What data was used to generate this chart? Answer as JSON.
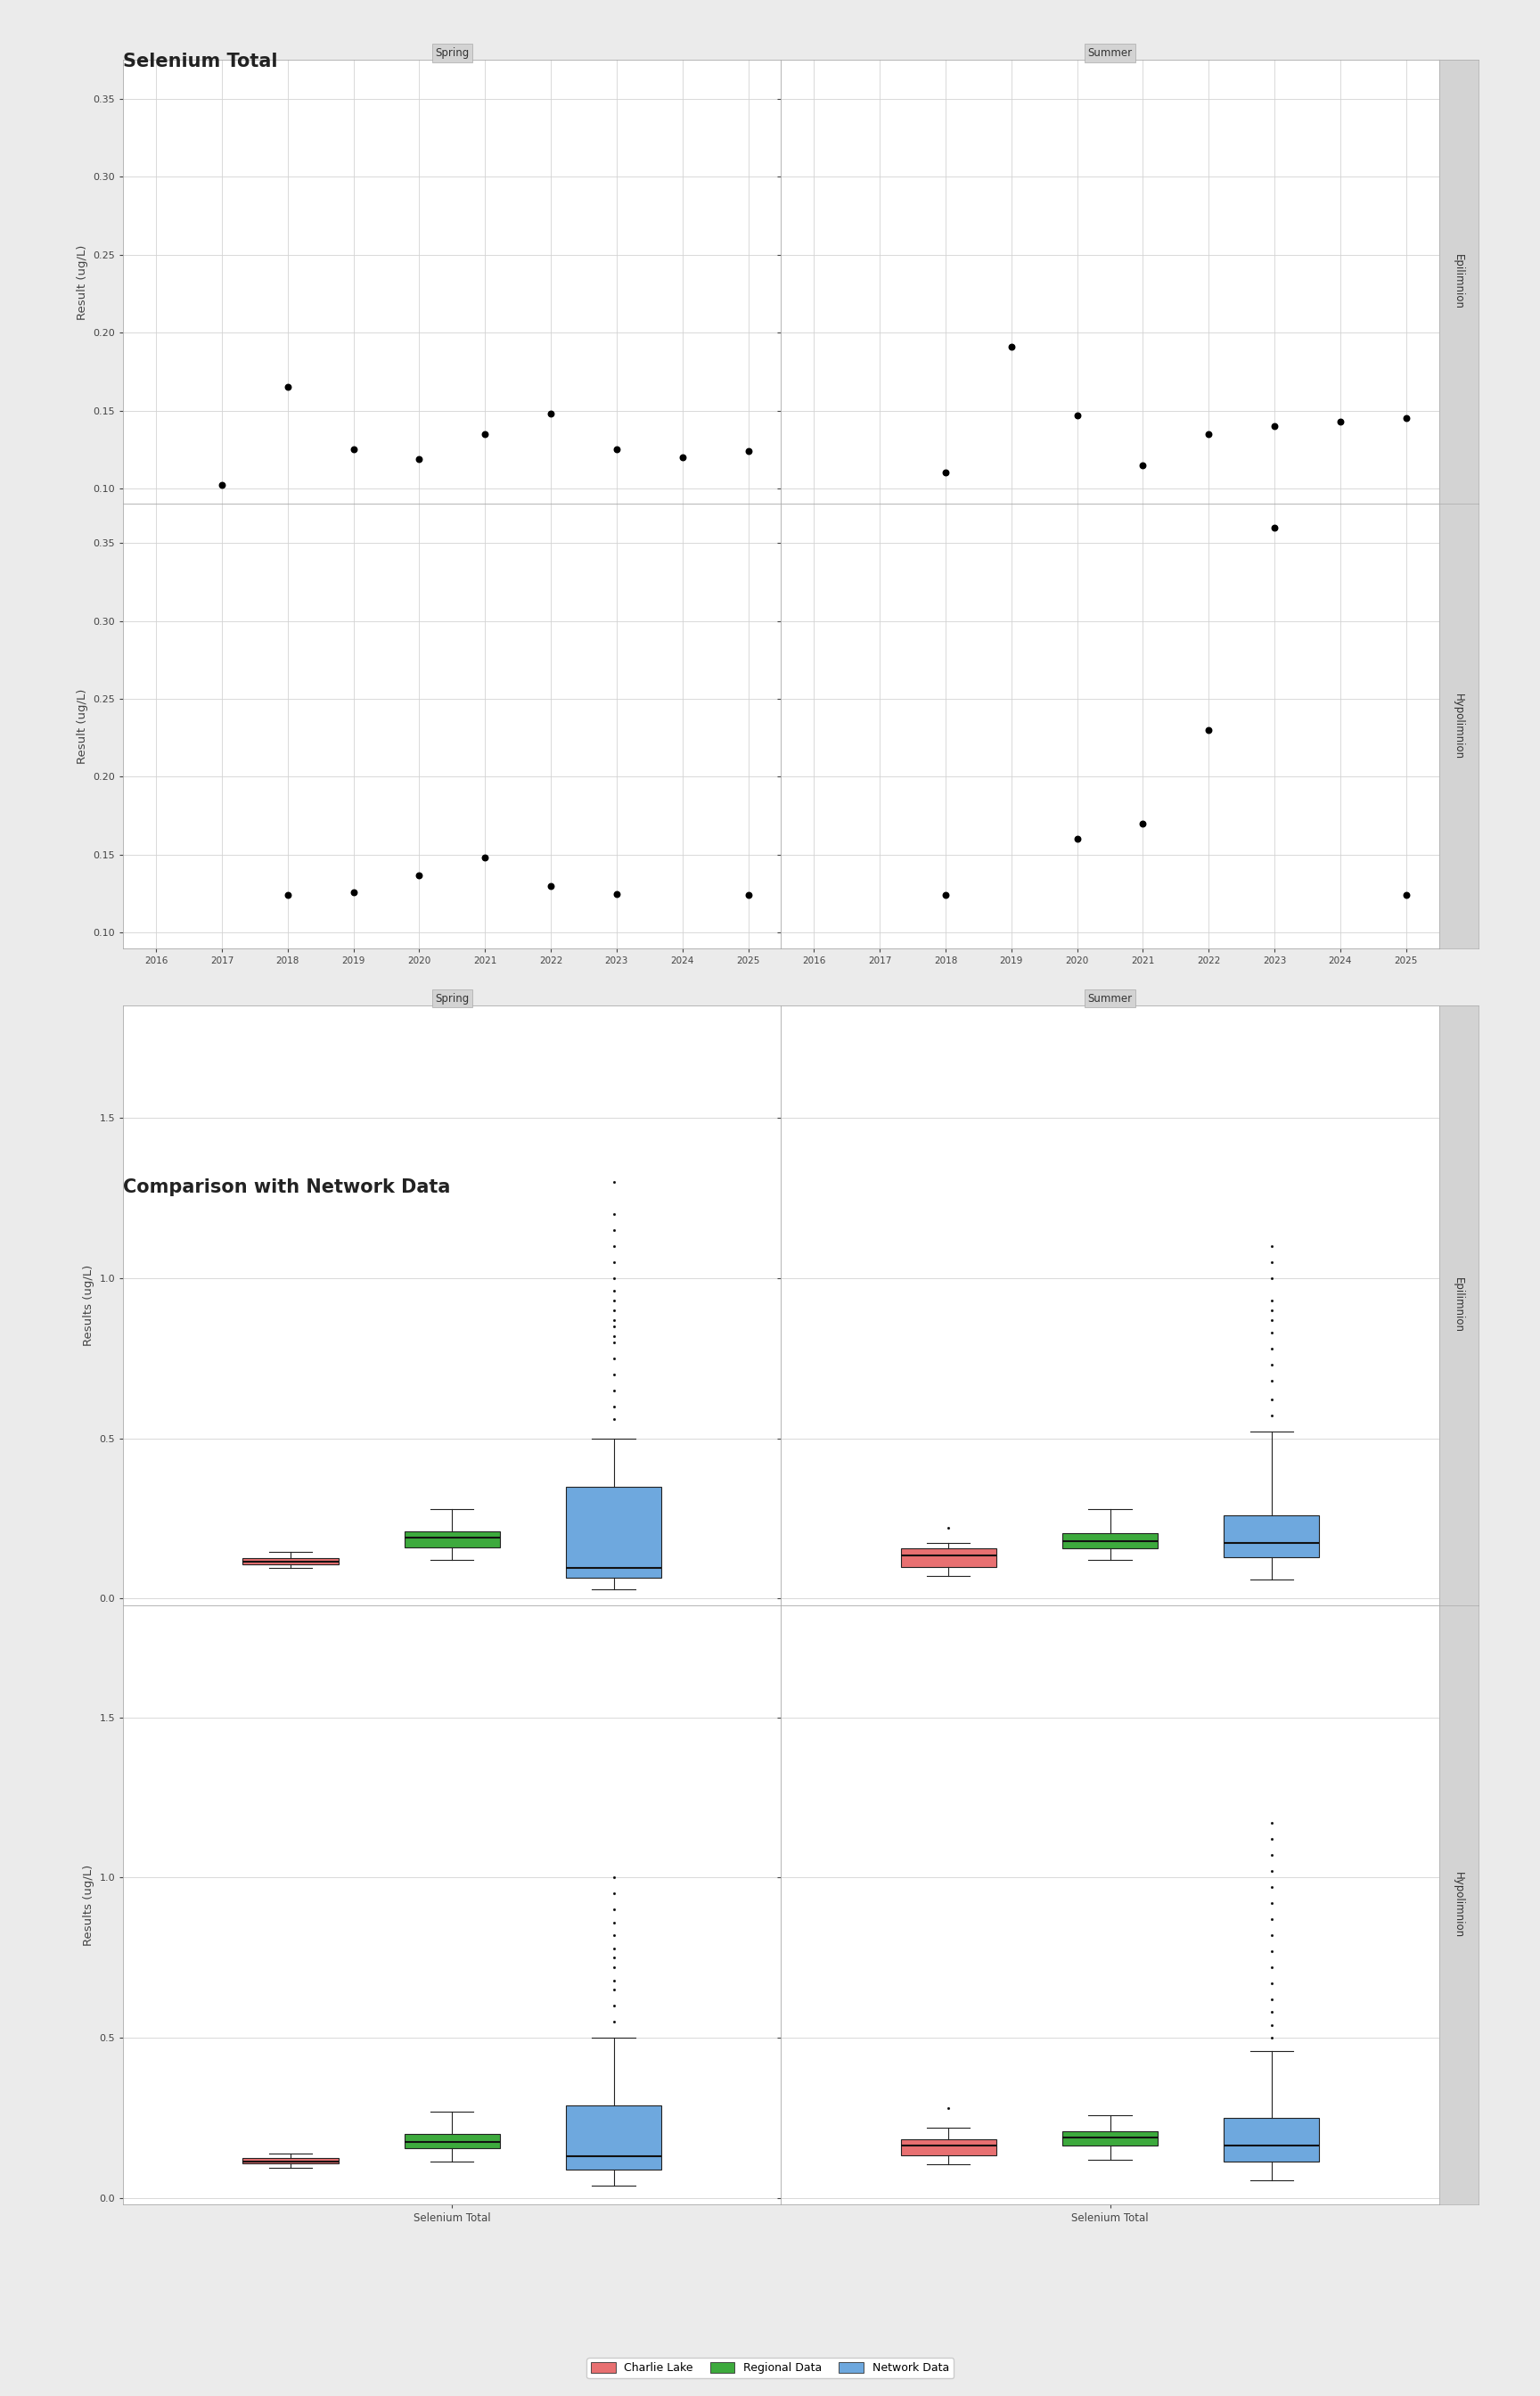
{
  "title1": "Selenium Total",
  "title2": "Comparison with Network Data",
  "ylabel1": "Result (ug/L)",
  "ylabel2": "Results (ug/L)",
  "xlabel": "Selenium Total",
  "scatter_spring_epi": {
    "x": [
      2017,
      2018,
      2019,
      2020,
      2021,
      2022,
      2023,
      2024,
      2025
    ],
    "y": [
      0.102,
      0.165,
      0.125,
      0.119,
      0.135,
      0.148,
      0.125,
      0.12,
      0.124
    ]
  },
  "scatter_summer_epi": {
    "x": [
      2018,
      2019,
      2020,
      2021,
      2022,
      2023,
      2024,
      2025
    ],
    "y": [
      0.11,
      0.191,
      0.147,
      0.115,
      0.135,
      0.14,
      0.143,
      0.145
    ]
  },
  "scatter_spring_hypo": {
    "x": [
      2018,
      2019,
      2020,
      2021,
      2022,
      2023,
      2025
    ],
    "y": [
      0.124,
      0.126,
      0.137,
      0.148,
      0.13,
      0.125,
      0.124
    ]
  },
  "scatter_summer_hypo": {
    "x": [
      2018,
      2020,
      2021,
      2022,
      2023,
      2025
    ],
    "y": [
      0.124,
      0.16,
      0.17,
      0.23,
      0.36,
      0.124
    ]
  },
  "box_spring_epi": {
    "charlie_lake": {
      "median": 0.115,
      "q1": 0.108,
      "q3": 0.125,
      "whislo": 0.095,
      "whishi": 0.145,
      "fliers": []
    },
    "regional": {
      "median": 0.19,
      "q1": 0.16,
      "q3": 0.21,
      "whislo": 0.12,
      "whishi": 0.28,
      "fliers": []
    },
    "network": {
      "median": 0.095,
      "q1": 0.065,
      "q3": 0.35,
      "whislo": 0.03,
      "whishi": 0.5,
      "fliers": [
        0.56,
        0.6,
        0.65,
        0.7,
        0.75,
        0.8,
        0.82,
        0.85,
        0.87,
        0.9,
        0.93,
        0.96,
        1.0,
        1.05,
        1.1,
        1.15,
        1.2,
        1.3
      ]
    }
  },
  "box_summer_epi": {
    "charlie_lake": {
      "median": 0.135,
      "q1": 0.098,
      "q3": 0.158,
      "whislo": 0.07,
      "whishi": 0.175,
      "fliers": [
        0.22
      ]
    },
    "regional": {
      "median": 0.18,
      "q1": 0.158,
      "q3": 0.205,
      "whislo": 0.12,
      "whishi": 0.28,
      "fliers": []
    },
    "network": {
      "median": 0.175,
      "q1": 0.13,
      "q3": 0.26,
      "whislo": 0.06,
      "whishi": 0.52,
      "fliers": [
        0.57,
        0.62,
        0.68,
        0.73,
        0.78,
        0.83,
        0.87,
        0.9,
        0.93,
        1.0,
        1.05,
        1.1
      ]
    }
  },
  "box_spring_hypo": {
    "charlie_lake": {
      "median": 0.115,
      "q1": 0.108,
      "q3": 0.125,
      "whislo": 0.095,
      "whishi": 0.14,
      "fliers": []
    },
    "regional": {
      "median": 0.175,
      "q1": 0.155,
      "q3": 0.2,
      "whislo": 0.115,
      "whishi": 0.27,
      "fliers": []
    },
    "network": {
      "median": 0.13,
      "q1": 0.09,
      "q3": 0.29,
      "whislo": 0.04,
      "whishi": 0.5,
      "fliers": [
        0.55,
        0.6,
        0.65,
        0.68,
        0.72,
        0.75,
        0.78,
        0.82,
        0.86,
        0.9,
        0.95,
        1.0
      ]
    }
  },
  "box_summer_hypo": {
    "charlie_lake": {
      "median": 0.165,
      "q1": 0.135,
      "q3": 0.185,
      "whislo": 0.105,
      "whishi": 0.22,
      "fliers": [
        0.28
      ]
    },
    "regional": {
      "median": 0.188,
      "q1": 0.163,
      "q3": 0.21,
      "whislo": 0.12,
      "whishi": 0.26,
      "fliers": []
    },
    "network": {
      "median": 0.165,
      "q1": 0.115,
      "q3": 0.25,
      "whislo": 0.055,
      "whishi": 0.46,
      "fliers": [
        0.5,
        0.54,
        0.58,
        0.62,
        0.67,
        0.72,
        0.77,
        0.82,
        0.87,
        0.92,
        0.97,
        1.02,
        1.07,
        1.12,
        1.17
      ]
    }
  },
  "colors": {
    "charlie_lake": "#E87071",
    "regional": "#3DAA3D",
    "network": "#6EA8DE"
  },
  "bg_color": "#EBEBEB",
  "panel_bg": "#FFFFFF",
  "grid_color": "#D3D3D3",
  "strip_bg": "#D3D3D3",
  "strip_text_color": "#333333",
  "axis_text_color": "#444444",
  "legend_labels": [
    "Charlie Lake",
    "Regional Data",
    "Network Data"
  ]
}
